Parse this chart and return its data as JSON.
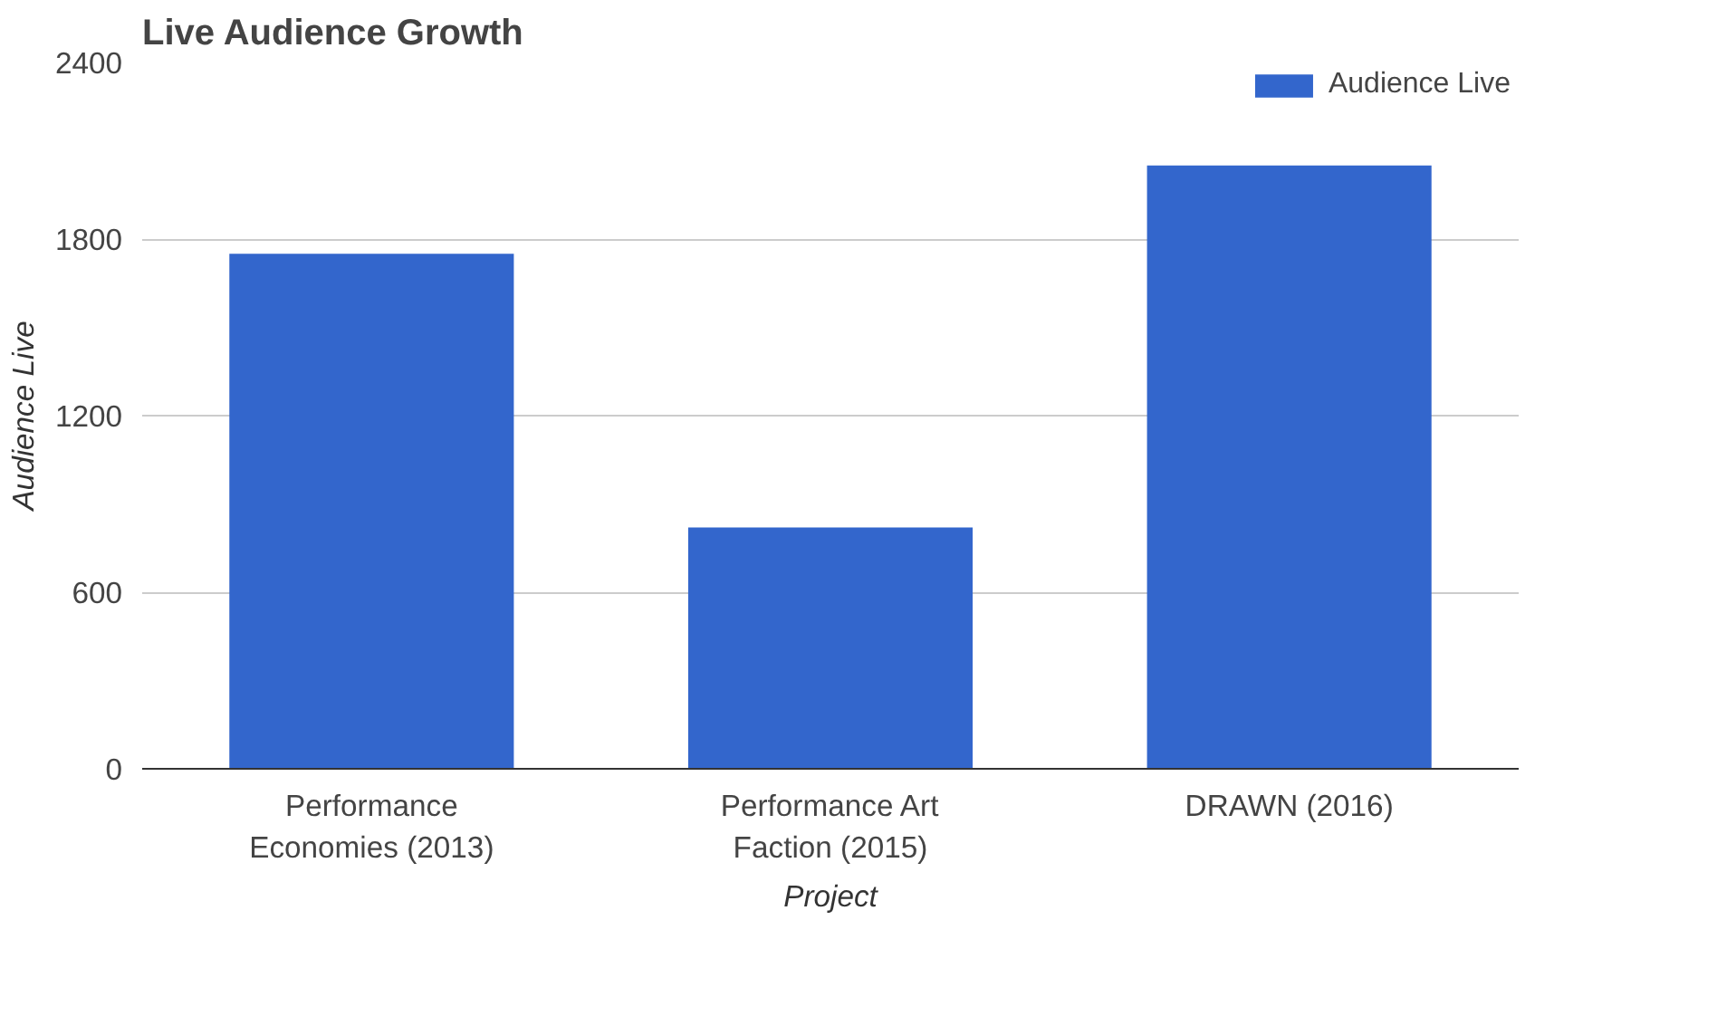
{
  "chart_data": {
    "type": "bar",
    "title": "Live Audience Growth",
    "xlabel": "Project",
    "ylabel": "Audience Live",
    "categories": [
      "Performance Economies (2013)",
      "Performance Art Faction (2015)",
      "DRAWN (2016)"
    ],
    "series": [
      {
        "name": "Audience Live",
        "color": "#3366cc",
        "values": [
          1750,
          820,
          2050
        ]
      }
    ],
    "ylim": [
      0,
      2400
    ],
    "yticks": [
      0,
      600,
      1200,
      1800,
      2400
    ],
    "grid": "y",
    "legend": "top right"
  }
}
